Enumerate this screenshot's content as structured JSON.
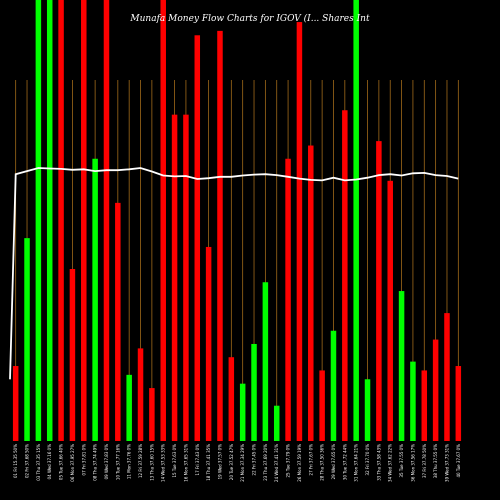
{
  "colors": {
    "background": "#000000",
    "up": "#00ff00",
    "down": "#ff0000",
    "gridline": "#a06a1a",
    "line": "#ffffff",
    "text": "#ffffff"
  },
  "chart_data": {
    "type": "bar",
    "title": "Munafa Money Flow Charts for IGOV (I... Shares Int",
    "ylim": [
      0,
      100
    ],
    "categories": [
      "01 Fri 15.35 50%",
      "02 Fri 37.68 50%",
      "03 Thu 37.35 15%",
      "04 Wed 37.16 0%",
      "05 Tue 37.66 40%",
      "06 Mon 37.95 27%",
      "07 Fri 37.81 0%",
      "08 Thu 37.74 49%",
      "09 Wed 37.83 0%",
      "10 Tue 37.77 16%",
      "11 Mon 37.76 0%",
      "12 Fri 37.59 28%",
      "13 Thu 37.60 15%",
      "14 Wed 37.53 33%",
      "15 Tue 37.63 0%",
      "16 Mon 37.65 31%",
      "17 Fri 37.43 0%",
      "18 Thu 37.41 35%",
      "19 Wed 37.57 0%",
      "20 Tue 37.52 47%",
      "21 Mon 37.34 29%",
      "22 Fri 37.45 0%",
      "23 Thu 37.69 20%",
      "24 Wed 37.41 31%",
      "25 Tue 37.79 0%",
      "26 Mon 37.59 19%",
      "27 Fri 37.67 0%",
      "28 Thu 37.50 36%",
      "29 Wed 37.65 0%",
      "30 Tue 37.72 44%",
      "31 Mon 37.64 21%",
      "32 Fri 37.70 0%",
      "33 Thu 37.58 43%",
      "34 Wed 37.62 22%",
      "35 Tue 37.55 0%",
      "36 Mon 37.56 17%",
      "37 Fri 37.78 50%",
      "38 Thu 37.55 0%",
      "39 Wed 37.73 31%",
      "40 Tue 37.67 0%"
    ],
    "series": [
      {
        "values": [
          17,
          46,
          100,
          100,
          100,
          39,
          100,
          64,
          100,
          54,
          15,
          21,
          12,
          100,
          74,
          74,
          92,
          44,
          93,
          19,
          13,
          22,
          36,
          8,
          64,
          95,
          67,
          16,
          25,
          75,
          100,
          14,
          68,
          59,
          34,
          18,
          16,
          23,
          29,
          17
        ]
      },
      {
        "direction": [
          "down",
          "up",
          "up",
          "up",
          "down",
          "down",
          "down",
          "up",
          "down",
          "down",
          "up",
          "down",
          "down",
          "down",
          "down",
          "down",
          "down",
          "down",
          "down",
          "down",
          "up",
          "up",
          "up",
          "up",
          "down",
          "down",
          "down",
          "down",
          "up",
          "down",
          "up",
          "up",
          "down",
          "down",
          "up",
          "up",
          "down",
          "down",
          "down",
          "down"
        ]
      },
      {
        "values": [
          60.5,
          61.2,
          61.9,
          61.8,
          61.7,
          61.5,
          61.6,
          61.2,
          61.4,
          61.4,
          61.6,
          61.9,
          61.1,
          60.2,
          60.0,
          60.1,
          59.4,
          59.6,
          59.9,
          59.9,
          60.2,
          60.4,
          60.5,
          60.3,
          59.9,
          59.5,
          59.2,
          59.1,
          59.7,
          59.1,
          59.3,
          59.7,
          60.3,
          60.5,
          60.2,
          60.7,
          60.8,
          60.3,
          60.1,
          59.5
        ]
      }
    ],
    "line_start": 14,
    "grid": "vertical"
  }
}
